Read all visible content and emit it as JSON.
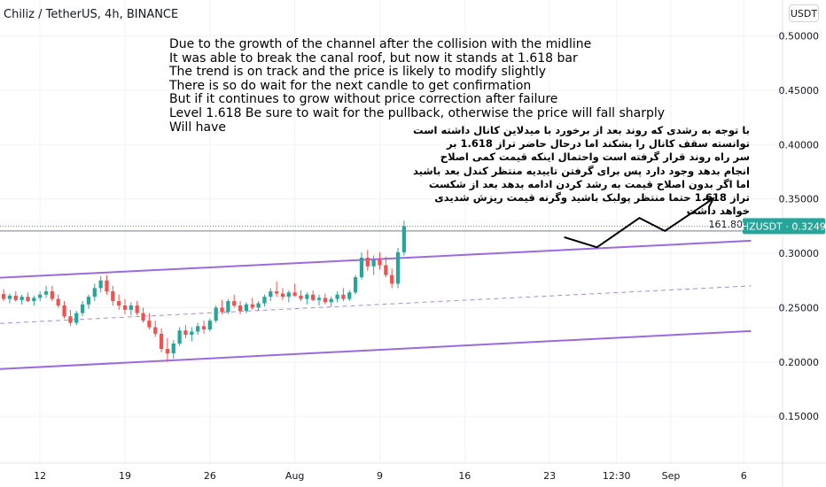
{
  "header": {
    "title": "Chiliz / TetherUS, 4h, BINANCE"
  },
  "currency_button": {
    "label": "USDT"
  },
  "price_tag": {
    "symbol": "CHZUSDT",
    "value": "0.32494",
    "level_label": "161.80"
  },
  "annotations": {
    "english": "Due to the growth of the channel after the collision with the midline\nIt was able to break the canal roof, but now it stands at 1.618 bar\nThe trend is on track and the price is likely to modify slightly\nThere is so do wait for the next candle to get confirmation\nBut if it continues to grow without price correction after failure\nLevel 1.618 Be sure to wait for the pullback, otherwise the price will fall sharply\nWill have",
    "persian": "با توجه به رشدی که روند بعد از برخورد با میدلاین کانال داشته است\nتوانسته سقف کانال را بشکند اما درحال حاضر تراز 1.618 بر\nسر راه روند قرار گرفته است واحتمال اینکه قیمت کمی اصلاح\nانجام بدهد وجود دارد پس برای گرفتن تاییدیه منتظر کندل بعد باشید\nاما اگر بدون اصلاح قیمت به رشد کردن ادامه بدهد بعد از شکست\nتراز 1.618 حتما منتظر پولبک باشید وگرنه قیمت ریزش شدیدی\nخواهد داشت"
  },
  "colors": {
    "up": "#26a69a",
    "down": "#ef5350",
    "channel": "#9c6ade",
    "midline": "#a98bd6",
    "price_tag": "#26a69a",
    "level_line": "#787b86",
    "grid": "#f0f3fa"
  },
  "chart_data": {
    "type": "candlestick",
    "symbol": "Chiliz / TetherUS",
    "interval": "4h",
    "exchange": "BINANCE",
    "y_ticks": [
      "0.50000",
      "0.45000",
      "0.40000",
      "0.35000",
      "0.30000",
      "0.25000",
      "0.20000",
      "0.15000"
    ],
    "y_tick_values": [
      0.5,
      0.45,
      0.4,
      0.35,
      0.3,
      0.25,
      0.2,
      0.15
    ],
    "ylim": [
      0.107,
      0.533
    ],
    "x_ticks": [
      "12",
      "19",
      "26",
      "Aug",
      "9",
      "16",
      "23",
      "12:30",
      "Sep",
      "6"
    ],
    "x_tick_days": [
      12,
      19,
      26,
      33,
      40,
      47,
      54,
      59.52,
      64,
      70
    ],
    "xlim": [
      8.7,
      73.2
    ],
    "last_price": 0.32494,
    "fib_level": {
      "label": "161.80",
      "price": 0.3205
    },
    "channel": {
      "upper": [
        [
          8.7,
          0.2775
        ],
        [
          70.6,
          0.3115
        ]
      ],
      "middle": [
        [
          8.7,
          0.2355
        ],
        [
          70.6,
          0.27
        ]
      ],
      "lower": [
        [
          8.7,
          0.1935
        ],
        [
          70.6,
          0.2285
        ]
      ]
    },
    "projection": [
      [
        55.2,
        0.3148
      ],
      [
        57.9,
        0.3055
      ],
      [
        61.4,
        0.3325
      ],
      [
        63.5,
        0.3205
      ],
      [
        67.5,
        0.3505
      ]
    ],
    "candles": [
      [
        9.0,
        0.2625,
        0.267,
        0.256,
        0.258
      ],
      [
        9.5,
        0.258,
        0.263,
        0.254,
        0.261
      ],
      [
        10.0,
        0.261,
        0.265,
        0.2555,
        0.257
      ],
      [
        10.5,
        0.257,
        0.262,
        0.253,
        0.26
      ],
      [
        11.0,
        0.26,
        0.264,
        0.255,
        0.256
      ],
      [
        11.5,
        0.256,
        0.261,
        0.252,
        0.259
      ],
      [
        12.0,
        0.259,
        0.265,
        0.256,
        0.262
      ],
      [
        12.5,
        0.262,
        0.27,
        0.259,
        0.265
      ],
      [
        13.0,
        0.265,
        0.27,
        0.256,
        0.258
      ],
      [
        13.5,
        0.258,
        0.262,
        0.25,
        0.252
      ],
      [
        14.0,
        0.252,
        0.256,
        0.24,
        0.242
      ],
      [
        14.5,
        0.242,
        0.248,
        0.233,
        0.236
      ],
      [
        15.0,
        0.236,
        0.247,
        0.234,
        0.245
      ],
      [
        15.5,
        0.245,
        0.256,
        0.242,
        0.253
      ],
      [
        16.0,
        0.253,
        0.262,
        0.249,
        0.26
      ],
      [
        16.5,
        0.26,
        0.272,
        0.256,
        0.268
      ],
      [
        17.0,
        0.268,
        0.279,
        0.264,
        0.275
      ],
      [
        17.5,
        0.275,
        0.28,
        0.262,
        0.265
      ],
      [
        18.0,
        0.265,
        0.27,
        0.252,
        0.256
      ],
      [
        18.5,
        0.256,
        0.262,
        0.248,
        0.252
      ],
      [
        19.0,
        0.252,
        0.258,
        0.244,
        0.248
      ],
      [
        19.5,
        0.248,
        0.255,
        0.243,
        0.252
      ],
      [
        20.0,
        0.252,
        0.256,
        0.243,
        0.245
      ],
      [
        20.5,
        0.245,
        0.25,
        0.236,
        0.238
      ],
      [
        21.0,
        0.238,
        0.245,
        0.23,
        0.232
      ],
      [
        21.5,
        0.232,
        0.238,
        0.223,
        0.226
      ],
      [
        22.0,
        0.226,
        0.231,
        0.209,
        0.212
      ],
      [
        22.5,
        0.212,
        0.222,
        0.2,
        0.208
      ],
      [
        23.0,
        0.208,
        0.22,
        0.203,
        0.217
      ],
      [
        23.5,
        0.217,
        0.232,
        0.215,
        0.229
      ],
      [
        24.0,
        0.229,
        0.234,
        0.222,
        0.225
      ],
      [
        24.5,
        0.225,
        0.232,
        0.219,
        0.228
      ],
      [
        25.0,
        0.228,
        0.236,
        0.225,
        0.233
      ],
      [
        25.5,
        0.233,
        0.238,
        0.226,
        0.23
      ],
      [
        26.0,
        0.23,
        0.24,
        0.228,
        0.238
      ],
      [
        26.5,
        0.238,
        0.252,
        0.236,
        0.25
      ],
      [
        27.0,
        0.25,
        0.257,
        0.244,
        0.246
      ],
      [
        27.5,
        0.246,
        0.258,
        0.244,
        0.256
      ],
      [
        28.0,
        0.256,
        0.262,
        0.25,
        0.252
      ],
      [
        28.5,
        0.252,
        0.256,
        0.244,
        0.247
      ],
      [
        29.0,
        0.247,
        0.255,
        0.245,
        0.253
      ],
      [
        29.5,
        0.253,
        0.259,
        0.248,
        0.25
      ],
      [
        30.0,
        0.25,
        0.256,
        0.247,
        0.254
      ],
      [
        30.5,
        0.254,
        0.262,
        0.251,
        0.26
      ],
      [
        31.0,
        0.26,
        0.268,
        0.256,
        0.265
      ],
      [
        31.5,
        0.265,
        0.274,
        0.26,
        0.263
      ],
      [
        32.0,
        0.263,
        0.268,
        0.257,
        0.26
      ],
      [
        32.5,
        0.26,
        0.266,
        0.255,
        0.264
      ],
      [
        33.0,
        0.264,
        0.272,
        0.26,
        0.261
      ],
      [
        33.5,
        0.261,
        0.266,
        0.256,
        0.258
      ],
      [
        34.0,
        0.258,
        0.264,
        0.253,
        0.262
      ],
      [
        34.5,
        0.262,
        0.266,
        0.256,
        0.257
      ],
      [
        35.0,
        0.257,
        0.262,
        0.252,
        0.259
      ],
      [
        35.5,
        0.259,
        0.263,
        0.253,
        0.255
      ],
      [
        36.0,
        0.255,
        0.26,
        0.251,
        0.258
      ],
      [
        36.5,
        0.258,
        0.265,
        0.255,
        0.262
      ],
      [
        37.0,
        0.262,
        0.268,
        0.256,
        0.258
      ],
      [
        37.5,
        0.258,
        0.266,
        0.256,
        0.264
      ],
      [
        38.0,
        0.264,
        0.28,
        0.262,
        0.278
      ],
      [
        38.5,
        0.278,
        0.301,
        0.276,
        0.296
      ],
      [
        39.0,
        0.296,
        0.303,
        0.284,
        0.288
      ],
      [
        39.5,
        0.288,
        0.298,
        0.28,
        0.294
      ],
      [
        40.0,
        0.294,
        0.301,
        0.285,
        0.289
      ],
      [
        40.5,
        0.289,
        0.297,
        0.278,
        0.28
      ],
      [
        41.0,
        0.28,
        0.286,
        0.268,
        0.272
      ],
      [
        41.5,
        0.272,
        0.305,
        0.268,
        0.301
      ],
      [
        42.0,
        0.301,
        0.33,
        0.298,
        0.3249
      ]
    ]
  }
}
